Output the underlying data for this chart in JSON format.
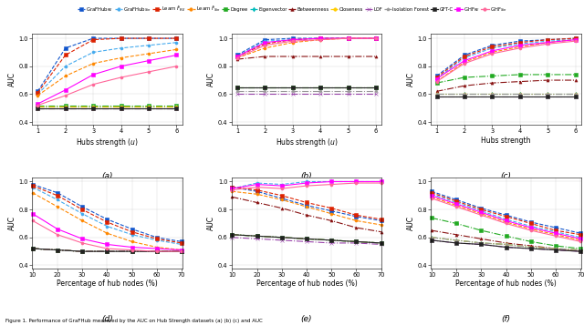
{
  "colors": [
    "#1155CC",
    "#44AAEE",
    "#DD2200",
    "#FF8800",
    "#22AA22",
    "#00BBBB",
    "#881111",
    "#FFCC00",
    "#9944AA",
    "#999999",
    "#222222",
    "#FF00FF",
    "#FF6699"
  ],
  "markers": [
    "s",
    "o",
    "s",
    "o",
    "s",
    "d",
    "^",
    "o",
    "x",
    "p",
    "s",
    "s",
    "o"
  ],
  "linestyles": [
    "--",
    "--",
    "--",
    "--",
    "-.",
    "-.",
    "-.",
    "-.",
    "-.",
    "-.",
    "-",
    "-",
    "-"
  ],
  "legend_labels": [
    "GraFHub$_{RE}$",
    "GraFHub$_{Sin}$",
    "Learn $\\hat{F}_{RE}$",
    "Learn $\\hat{F}_{Sin}$",
    "Degree",
    "Eigenvector",
    "Betweenness",
    "Closeness",
    "LOF",
    "Isolation Forest",
    "GFT-C",
    "GHF$_{RE}$",
    "GHF$_{Sin}$"
  ],
  "subplot_a": {
    "x": [
      1,
      2,
      3,
      4,
      5,
      6
    ],
    "xlabel": "Hubs strength ($u$)",
    "ylabel": "AUC",
    "label": "(a)",
    "series": [
      [
        0.62,
        0.93,
        1.0,
        1.0,
        1.0,
        1.0
      ],
      [
        0.6,
        0.8,
        0.9,
        0.93,
        0.95,
        0.97
      ],
      [
        0.61,
        0.88,
        0.99,
        1.0,
        1.0,
        1.0
      ],
      [
        0.59,
        0.73,
        0.82,
        0.86,
        0.89,
        0.92
      ],
      [
        0.52,
        0.52,
        0.52,
        0.52,
        0.52,
        0.52
      ],
      [
        0.51,
        0.51,
        0.51,
        0.51,
        0.51,
        0.51
      ],
      [
        0.5,
        0.5,
        0.5,
        0.5,
        0.5,
        0.5
      ],
      [
        0.51,
        0.51,
        0.51,
        0.51,
        0.51,
        0.51
      ],
      [
        0.5,
        0.5,
        0.5,
        0.5,
        0.5,
        0.5
      ],
      [
        0.5,
        0.5,
        0.5,
        0.5,
        0.5,
        0.5
      ],
      [
        0.5,
        0.5,
        0.5,
        0.5,
        0.5,
        0.5
      ],
      [
        0.53,
        0.63,
        0.74,
        0.8,
        0.84,
        0.88
      ],
      [
        0.52,
        0.59,
        0.67,
        0.72,
        0.76,
        0.8
      ]
    ],
    "ylim": [
      0.38,
      1.03
    ]
  },
  "subplot_b": {
    "x": [
      1,
      2,
      3,
      4,
      5,
      6
    ],
    "xlabel": "Hubs strength ($u$)",
    "ylabel": "AUC",
    "label": "(b)",
    "series": [
      [
        0.88,
        0.99,
        1.0,
        1.0,
        1.0,
        1.0
      ],
      [
        0.87,
        0.98,
        0.99,
        1.0,
        1.0,
        1.0
      ],
      [
        0.87,
        0.96,
        0.99,
        1.0,
        1.0,
        1.0
      ],
      [
        0.86,
        0.93,
        0.97,
        0.99,
        1.0,
        1.0
      ],
      [
        0.65,
        0.65,
        0.65,
        0.65,
        0.65,
        0.65
      ],
      [
        0.65,
        0.65,
        0.65,
        0.65,
        0.65,
        0.65
      ],
      [
        0.85,
        0.87,
        0.87,
        0.87,
        0.87,
        0.87
      ],
      [
        0.65,
        0.65,
        0.65,
        0.65,
        0.65,
        0.65
      ],
      [
        0.6,
        0.6,
        0.6,
        0.6,
        0.6,
        0.6
      ],
      [
        0.62,
        0.62,
        0.62,
        0.62,
        0.62,
        0.62
      ],
      [
        0.65,
        0.65,
        0.65,
        0.65,
        0.65,
        0.65
      ],
      [
        0.87,
        0.97,
        0.99,
        1.0,
        1.0,
        1.0
      ],
      [
        0.86,
        0.95,
        0.98,
        0.99,
        1.0,
        1.0
      ]
    ],
    "ylim": [
      0.38,
      1.03
    ]
  },
  "subplot_c": {
    "x": [
      1,
      2,
      3,
      4,
      5,
      6
    ],
    "xlabel": "Hubs strength",
    "ylabel": "AUC",
    "label": "(c)",
    "series": [
      [
        0.73,
        0.88,
        0.95,
        0.98,
        0.99,
        1.0
      ],
      [
        0.71,
        0.86,
        0.93,
        0.96,
        0.98,
        0.99
      ],
      [
        0.72,
        0.87,
        0.94,
        0.97,
        0.99,
        1.0
      ],
      [
        0.69,
        0.83,
        0.9,
        0.94,
        0.97,
        0.99
      ],
      [
        0.68,
        0.72,
        0.73,
        0.74,
        0.74,
        0.74
      ],
      [
        0.6,
        0.6,
        0.6,
        0.6,
        0.6,
        0.6
      ],
      [
        0.62,
        0.66,
        0.68,
        0.69,
        0.7,
        0.7
      ],
      [
        0.6,
        0.6,
        0.6,
        0.6,
        0.6,
        0.6
      ],
      [
        0.58,
        0.58,
        0.58,
        0.58,
        0.58,
        0.58
      ],
      [
        0.6,
        0.6,
        0.6,
        0.6,
        0.6,
        0.6
      ],
      [
        0.58,
        0.58,
        0.58,
        0.58,
        0.58,
        0.58
      ],
      [
        0.71,
        0.84,
        0.91,
        0.95,
        0.97,
        0.99
      ],
      [
        0.69,
        0.82,
        0.89,
        0.93,
        0.96,
        0.98
      ]
    ],
    "ylim": [
      0.38,
      1.03
    ]
  },
  "subplot_d": {
    "x": [
      10,
      20,
      30,
      40,
      50,
      60,
      70
    ],
    "xlabel": "Percentage of hub nodes (%)",
    "ylabel": "AUC",
    "label": "(d)",
    "series": [
      [
        0.98,
        0.92,
        0.82,
        0.73,
        0.66,
        0.6,
        0.57
      ],
      [
        0.96,
        0.87,
        0.77,
        0.68,
        0.62,
        0.58,
        0.55
      ],
      [
        0.97,
        0.9,
        0.8,
        0.71,
        0.64,
        0.59,
        0.56
      ],
      [
        0.92,
        0.82,
        0.72,
        0.63,
        0.57,
        0.53,
        0.51
      ],
      [
        0.52,
        0.51,
        0.5,
        0.5,
        0.5,
        0.5,
        0.5
      ],
      [
        0.52,
        0.51,
        0.5,
        0.5,
        0.5,
        0.5,
        0.5
      ],
      [
        0.52,
        0.51,
        0.5,
        0.5,
        0.5,
        0.5,
        0.5
      ],
      [
        0.52,
        0.51,
        0.5,
        0.5,
        0.5,
        0.5,
        0.5
      ],
      [
        0.52,
        0.51,
        0.5,
        0.5,
        0.5,
        0.5,
        0.5
      ],
      [
        0.52,
        0.51,
        0.5,
        0.5,
        0.5,
        0.5,
        0.5
      ],
      [
        0.52,
        0.51,
        0.5,
        0.5,
        0.5,
        0.5,
        0.5
      ],
      [
        0.77,
        0.66,
        0.59,
        0.55,
        0.53,
        0.52,
        0.51
      ],
      [
        0.72,
        0.62,
        0.56,
        0.52,
        0.51,
        0.5,
        0.5
      ]
    ],
    "ylim": [
      0.38,
      1.03
    ]
  },
  "subplot_e": {
    "x": [
      10,
      20,
      30,
      40,
      50,
      60,
      70
    ],
    "xlabel": "Percentage of hub nodes (%)",
    "ylabel": "AUC",
    "label": "(e)",
    "series": [
      [
        0.96,
        0.93,
        0.88,
        0.83,
        0.79,
        0.75,
        0.72
      ],
      [
        0.95,
        0.99,
        0.98,
        1.0,
        1.0,
        1.0,
        1.0
      ],
      [
        0.96,
        0.94,
        0.9,
        0.85,
        0.81,
        0.76,
        0.73
      ],
      [
        0.93,
        0.91,
        0.87,
        0.82,
        0.77,
        0.72,
        0.69
      ],
      [
        0.62,
        0.61,
        0.6,
        0.59,
        0.58,
        0.57,
        0.56
      ],
      [
        0.62,
        0.61,
        0.6,
        0.59,
        0.58,
        0.57,
        0.56
      ],
      [
        0.89,
        0.85,
        0.81,
        0.76,
        0.72,
        0.67,
        0.64
      ],
      [
        0.62,
        0.61,
        0.6,
        0.59,
        0.58,
        0.57,
        0.56
      ],
      [
        0.6,
        0.59,
        0.58,
        0.57,
        0.56,
        0.56,
        0.55
      ],
      [
        0.62,
        0.61,
        0.6,
        0.59,
        0.58,
        0.57,
        0.56
      ],
      [
        0.62,
        0.61,
        0.6,
        0.59,
        0.58,
        0.57,
        0.56
      ],
      [
        0.95,
        0.98,
        0.97,
        0.99,
        1.0,
        1.0,
        1.0
      ],
      [
        0.94,
        0.96,
        0.95,
        0.97,
        0.98,
        0.99,
        0.99
      ]
    ],
    "ylim": [
      0.38,
      1.03
    ]
  },
  "subplot_f": {
    "x": [
      10,
      20,
      30,
      40,
      50,
      60,
      70
    ],
    "xlabel": "Percentage of hub nodes (%)",
    "ylabel": "AUC",
    "label": "(f)",
    "series": [
      [
        0.93,
        0.87,
        0.81,
        0.76,
        0.71,
        0.67,
        0.63
      ],
      [
        0.91,
        0.85,
        0.79,
        0.73,
        0.68,
        0.64,
        0.6
      ],
      [
        0.92,
        0.86,
        0.8,
        0.75,
        0.7,
        0.65,
        0.62
      ],
      [
        0.89,
        0.83,
        0.77,
        0.71,
        0.66,
        0.62,
        0.58
      ],
      [
        0.74,
        0.7,
        0.65,
        0.61,
        0.57,
        0.54,
        0.52
      ],
      [
        0.6,
        0.58,
        0.56,
        0.55,
        0.53,
        0.52,
        0.51
      ],
      [
        0.65,
        0.62,
        0.59,
        0.56,
        0.54,
        0.52,
        0.5
      ],
      [
        0.6,
        0.58,
        0.56,
        0.55,
        0.53,
        0.52,
        0.51
      ],
      [
        0.58,
        0.56,
        0.55,
        0.53,
        0.52,
        0.51,
        0.5
      ],
      [
        0.6,
        0.58,
        0.56,
        0.55,
        0.53,
        0.52,
        0.51
      ],
      [
        0.58,
        0.56,
        0.55,
        0.53,
        0.52,
        0.51,
        0.5
      ],
      [
        0.9,
        0.84,
        0.78,
        0.72,
        0.67,
        0.63,
        0.59
      ],
      [
        0.88,
        0.82,
        0.76,
        0.7,
        0.65,
        0.61,
        0.57
      ]
    ],
    "ylim": [
      0.38,
      1.03
    ]
  },
  "caption": "Figure 1. Performance of GraFHub measured by the AUC on Hub Strength datasets (a) (b) (c) and AUC"
}
